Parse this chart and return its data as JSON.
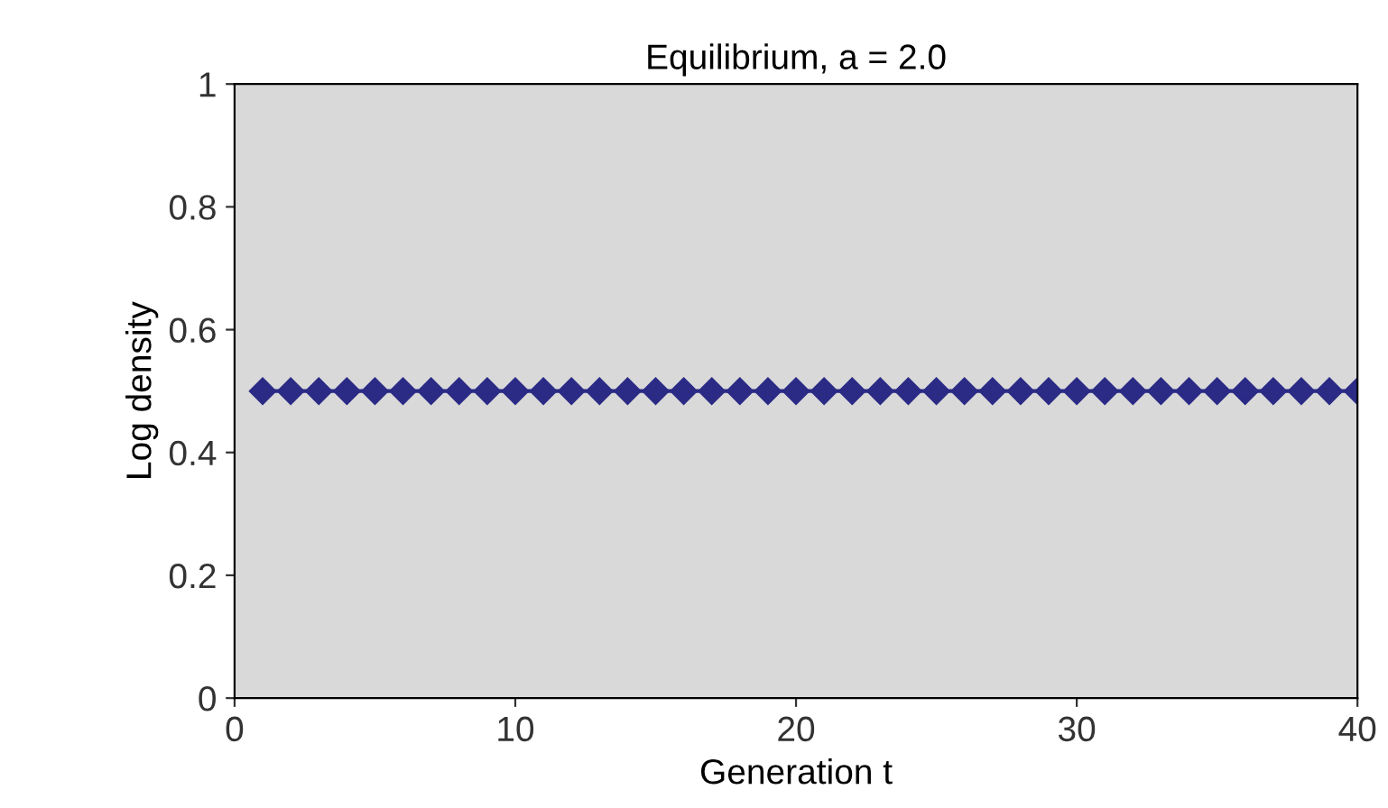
{
  "chart_data": {
    "type": "line",
    "title": "Equilibrium, a = 2.0",
    "xlabel": "Generation t",
    "ylabel": "Log density",
    "x": [
      1,
      2,
      3,
      4,
      5,
      6,
      7,
      8,
      9,
      10,
      11,
      12,
      13,
      14,
      15,
      16,
      17,
      18,
      19,
      20,
      21,
      22,
      23,
      24,
      25,
      26,
      27,
      28,
      29,
      30,
      31,
      32,
      33,
      34,
      35,
      36,
      37,
      38,
      39,
      40
    ],
    "series": [
      {
        "color": "#2b2b86",
        "values": [
          0.5,
          0.5,
          0.5,
          0.5,
          0.5,
          0.5,
          0.5,
          0.5,
          0.5,
          0.5,
          0.5,
          0.5,
          0.5,
          0.5,
          0.5,
          0.5,
          0.5,
          0.5,
          0.5,
          0.5,
          0.5,
          0.5,
          0.5,
          0.5,
          0.5,
          0.5,
          0.5,
          0.5,
          0.5,
          0.5,
          0.5,
          0.5,
          0.5,
          0.5,
          0.5,
          0.5,
          0.5,
          0.5,
          0.5,
          0.5
        ]
      }
    ],
    "xlim": [
      0,
      40
    ],
    "ylim": [
      0,
      1
    ],
    "xticks": [
      0,
      10,
      20,
      30,
      40
    ],
    "yticks": [
      0,
      0.2,
      0.4,
      0.6,
      0.8,
      1
    ],
    "marker": "diamond",
    "line_style": "solid",
    "grid": false,
    "legend": false
  }
}
